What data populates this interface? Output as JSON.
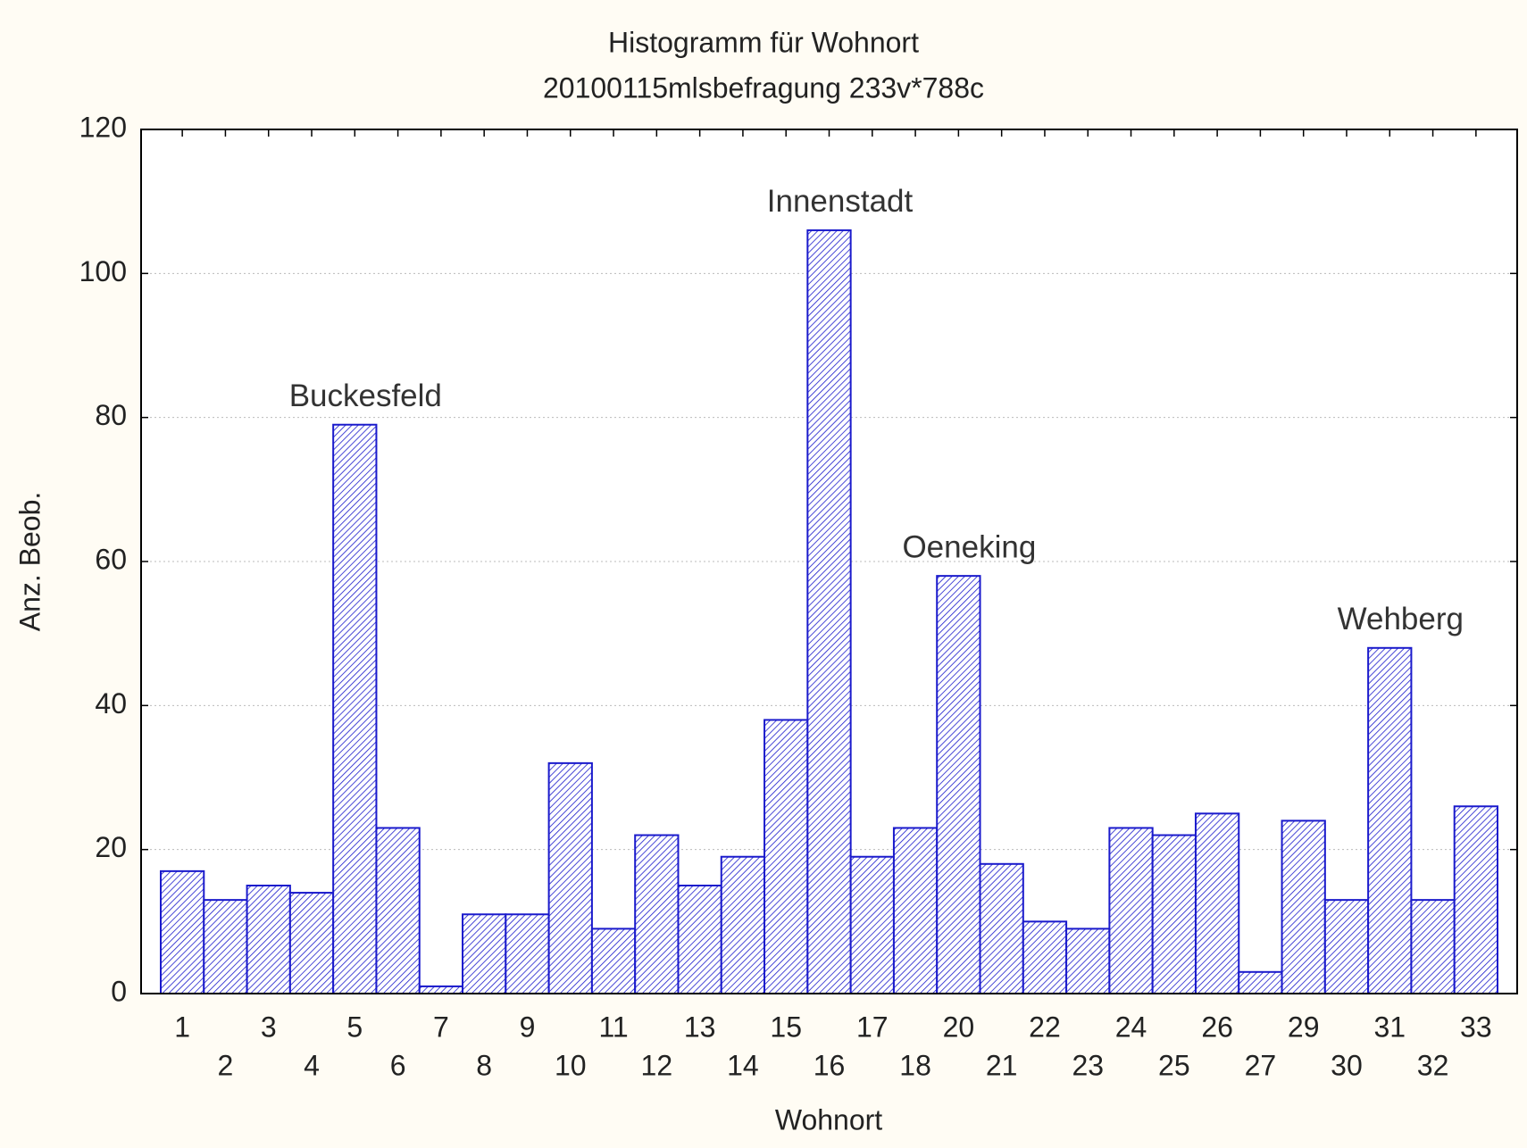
{
  "chart_data": {
    "type": "bar",
    "title": "Histogramm für Wohnort",
    "subtitle": "20100115mlsbefragung 233v*788c",
    "x_label": "Wohnort",
    "y_label": "Anz. Beob.",
    "categories": [
      "1",
      "2",
      "3",
      "4",
      "5",
      "6",
      "7",
      "8",
      "9",
      "10",
      "11",
      "12",
      "13",
      "14",
      "15",
      "16",
      "17",
      "18",
      "20",
      "21",
      "22",
      "23",
      "24",
      "25",
      "26",
      "27",
      "29",
      "30",
      "31",
      "32",
      "33"
    ],
    "values": [
      17,
      13,
      15,
      14,
      79,
      23,
      1,
      11,
      11,
      32,
      9,
      22,
      15,
      19,
      38,
      106,
      19,
      23,
      58,
      18,
      10,
      9,
      23,
      22,
      25,
      3,
      24,
      13,
      48,
      13,
      26
    ],
    "color": "#1a1acc",
    "ylim": [
      0,
      120
    ],
    "yticks": [
      0,
      20,
      40,
      60,
      80,
      100,
      120
    ],
    "grid": true,
    "annotations": [
      {
        "text": "Buckesfeld",
        "x": "5"
      },
      {
        "text": "Innenstadt",
        "x": "16"
      },
      {
        "text": "Oeneking",
        "x": "20"
      },
      {
        "text": "Wehberg",
        "x": "31"
      }
    ]
  }
}
